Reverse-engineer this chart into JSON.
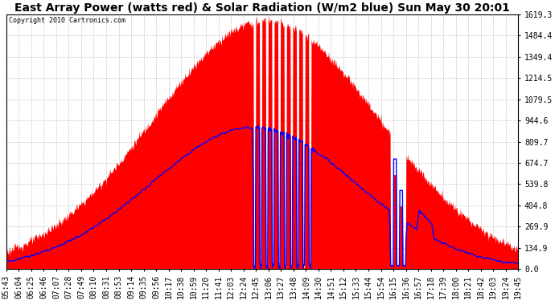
{
  "title": "East Array Power (watts red) & Solar Radiation (W/m2 blue) Sun May 30 20:01",
  "copyright": "Copyright 2010 Cartronics.com",
  "yticks": [
    0.0,
    134.9,
    269.9,
    404.8,
    539.8,
    674.7,
    809.7,
    944.6,
    1079.5,
    1214.5,
    1349.4,
    1484.4,
    1619.3
  ],
  "ymax": 1619.3,
  "ymin": 0.0,
  "xtick_labels": [
    "05:43",
    "06:04",
    "06:25",
    "06:46",
    "07:07",
    "07:28",
    "07:49",
    "08:10",
    "08:31",
    "08:53",
    "09:14",
    "09:35",
    "09:56",
    "10:17",
    "10:38",
    "10:59",
    "11:20",
    "11:41",
    "12:03",
    "12:24",
    "12:45",
    "13:06",
    "13:27",
    "13:48",
    "14:09",
    "14:30",
    "14:51",
    "15:12",
    "15:33",
    "15:44",
    "15:54",
    "16:15",
    "16:36",
    "16:57",
    "17:18",
    "17:39",
    "18:00",
    "18:21",
    "18:42",
    "19:03",
    "19:24",
    "19:45"
  ],
  "bg_color": "#ffffff",
  "grid_color": "#c8c8c8",
  "red_color": "#ff0000",
  "blue_color": "#0000ff",
  "title_fontsize": 10,
  "axis_fontsize": 7
}
